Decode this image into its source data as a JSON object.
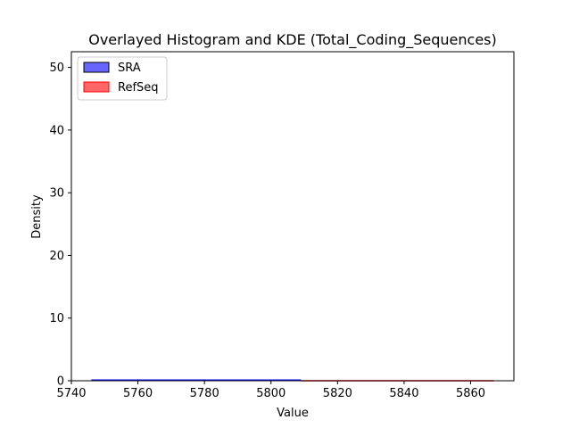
{
  "chart_data": {
    "type": "histogram",
    "title": "Overlayed Histogram and KDE (Total_Coding_Sequences)",
    "xlabel": "Value",
    "ylabel": "Density",
    "xlim": [
      5740,
      5873
    ],
    "ylim": [
      0,
      52.5
    ],
    "x_ticks": [
      "5740",
      "5760",
      "5780",
      "5800",
      "5820",
      "5840",
      "5860"
    ],
    "y_ticks": [
      "0",
      "10",
      "20",
      "30",
      "40",
      "50"
    ],
    "grid": false,
    "legend_position": "top-left",
    "series": [
      {
        "name": "SRA",
        "color": "#0000ff",
        "edge_color": "#000000",
        "opacity": 0.6,
        "kde_x": [
          5746,
          5809
        ],
        "kde_y": [
          0.1,
          0.1
        ]
      },
      {
        "name": "RefSeq",
        "color": "#ff0000",
        "edge_color": "#ff0000",
        "opacity": 0.6,
        "kde_x": [
          5809,
          5867
        ],
        "kde_y": [
          0.0,
          0.0
        ]
      }
    ]
  }
}
